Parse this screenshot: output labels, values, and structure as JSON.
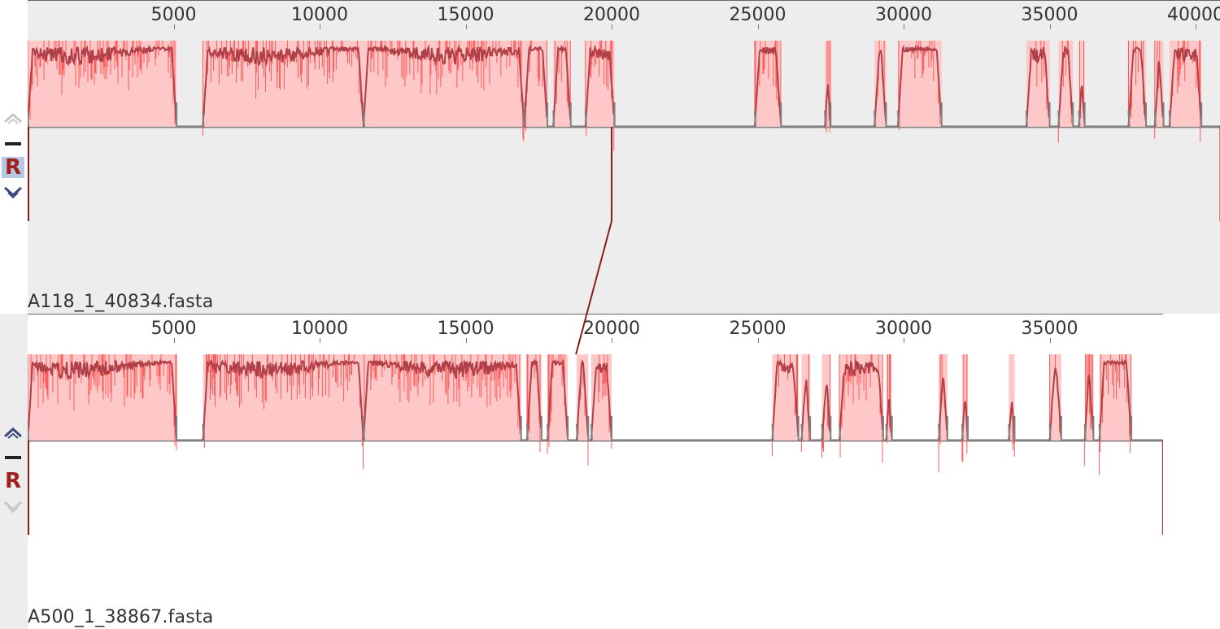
{
  "sequences": [
    {
      "name": "A118_1_40834.fasta",
      "length": 40834,
      "ticks": [
        "5000",
        "10000",
        "15000",
        "20000",
        "25000",
        "30000",
        "35000",
        "40000"
      ],
      "control_selected": "R",
      "controls": {
        "up": "chevron-up-icon",
        "minus": "minus-icon",
        "reverse": "R",
        "down": "chevron-down-icon"
      },
      "blocks": [
        [
          0,
          5100
        ],
        [
          6000,
          11500
        ],
        [
          11500,
          17000
        ],
        [
          17000,
          17800
        ],
        [
          18000,
          18600
        ],
        [
          19100,
          20100
        ],
        [
          24900,
          25800
        ],
        [
          27300,
          27500
        ],
        [
          29000,
          29400
        ],
        [
          29800,
          31300
        ],
        [
          34200,
          35000
        ],
        [
          35300,
          35800
        ],
        [
          36000,
          36200
        ],
        [
          37700,
          38300
        ],
        [
          38600,
          38900
        ],
        [
          39100,
          40200
        ]
      ],
      "marker_pos": 20000
    },
    {
      "name": "A500_1_38867.fasta",
      "length": 38867,
      "ticks": [
        "5000",
        "10000",
        "15000",
        "20000",
        "25000",
        "30000",
        "35000"
      ],
      "controls": {
        "up": "chevron-up-icon",
        "minus": "minus-icon",
        "reverse": "R",
        "down": "chevron-down-icon"
      },
      "blocks": [
        [
          0,
          5100
        ],
        [
          6000,
          11500
        ],
        [
          11500,
          16900
        ],
        [
          17100,
          17600
        ],
        [
          17800,
          18500
        ],
        [
          18800,
          19200
        ],
        [
          19300,
          20000
        ],
        [
          25500,
          26400
        ],
        [
          26500,
          26800
        ],
        [
          27200,
          27500
        ],
        [
          27800,
          29300
        ],
        [
          29400,
          29600
        ],
        [
          31200,
          31500
        ],
        [
          32000,
          32200
        ],
        [
          33600,
          33800
        ],
        [
          35000,
          35400
        ],
        [
          36200,
          36500
        ],
        [
          36700,
          37800
        ]
      ],
      "marker_pos": 19000
    }
  ],
  "colors": {
    "fill": "#ffc8c8",
    "bright": "#ff5a5a",
    "profile": "#b04048",
    "gap": "#808080",
    "connector": "#8b1a1a"
  }
}
